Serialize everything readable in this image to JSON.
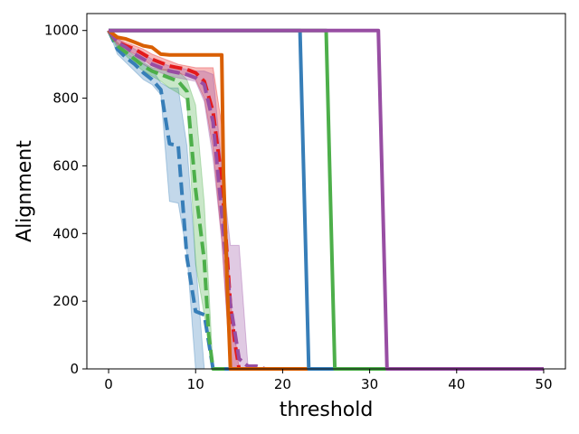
{
  "chart_data": {
    "type": "line",
    "title": "",
    "xlabel": "threshold",
    "ylabel": "Alignment",
    "xlim": [
      -2.5,
      52.5
    ],
    "ylim": [
      0,
      1050
    ],
    "xticks": [
      0,
      10,
      20,
      30,
      40,
      50
    ],
    "yticks": [
      0,
      200,
      400,
      600,
      800,
      1000
    ],
    "grid": false,
    "legend": "none",
    "bands": [
      {
        "color": "#377eb8",
        "x": [
          0,
          1,
          2,
          3,
          4,
          5,
          6,
          7,
          8,
          9,
          10,
          11,
          12,
          15,
          50
        ],
        "lower": [
          1000,
          930,
          905,
          880,
          855,
          840,
          810,
          495,
          490,
          340,
          0,
          0,
          0,
          0,
          0
        ],
        "upper": [
          1000,
          955,
          930,
          915,
          900,
          885,
          845,
          830,
          830,
          660,
          320,
          0,
          0,
          0,
          0
        ]
      },
      {
        "color": "#4daf4a",
        "x": [
          0,
          1,
          2,
          3,
          4,
          5,
          6,
          7,
          8,
          9,
          10,
          11,
          12,
          13,
          50
        ],
        "lower": [
          1000,
          945,
          925,
          900,
          880,
          865,
          850,
          830,
          815,
          795,
          310,
          160,
          0,
          0,
          0
        ],
        "upper": [
          1000,
          965,
          945,
          925,
          905,
          890,
          885,
          885,
          880,
          855,
          780,
          490,
          0,
          0,
          0
        ]
      },
      {
        "color": "#e41a1c",
        "x": [
          0,
          1,
          2,
          3,
          4,
          5,
          6,
          7,
          8,
          9,
          10,
          11,
          12,
          13,
          14,
          15,
          50
        ],
        "lower": [
          1000,
          960,
          945,
          930,
          915,
          895,
          885,
          880,
          875,
          865,
          855,
          800,
          650,
          380,
          0,
          0,
          0
        ],
        "upper": [
          1000,
          975,
          965,
          955,
          945,
          930,
          920,
          910,
          900,
          895,
          890,
          890,
          890,
          720,
          200,
          0,
          0
        ]
      },
      {
        "color": "#984ea3",
        "x": [
          0,
          1,
          2,
          3,
          4,
          5,
          6,
          7,
          8,
          9,
          10,
          11,
          12,
          13,
          14,
          15,
          16,
          17,
          50
        ],
        "lower": [
          1000,
          955,
          935,
          915,
          900,
          885,
          875,
          865,
          860,
          855,
          850,
          790,
          620,
          380,
          0,
          0,
          0,
          0,
          0
        ],
        "upper": [
          1000,
          975,
          960,
          945,
          930,
          915,
          905,
          895,
          890,
          885,
          880,
          880,
          870,
          600,
          365,
          365,
          15,
          0,
          0
        ]
      }
    ],
    "series": [
      {
        "color": "#377eb8",
        "style": "dashed",
        "x": [
          0,
          1,
          2,
          3,
          4,
          5,
          6,
          7,
          8,
          9,
          10,
          11,
          12,
          50
        ],
        "values": [
          1000,
          945,
          920,
          900,
          875,
          855,
          825,
          665,
          660,
          330,
          170,
          160,
          0,
          0
        ]
      },
      {
        "color": "#4daf4a",
        "style": "dashed",
        "x": [
          0,
          1,
          2,
          3,
          4,
          5,
          6,
          7,
          8,
          9,
          10,
          11,
          11.5,
          12,
          50
        ],
        "values": [
          1000,
          955,
          935,
          915,
          895,
          880,
          870,
          860,
          850,
          820,
          530,
          320,
          100,
          0,
          0
        ]
      },
      {
        "color": "#e41a1c",
        "style": "dashed",
        "x": [
          0,
          1,
          2,
          3,
          4,
          5,
          6,
          7,
          8,
          9,
          10,
          11,
          12,
          13,
          13.5,
          14,
          14.5,
          15,
          50
        ],
        "values": [
          1000,
          965,
          955,
          945,
          930,
          915,
          905,
          895,
          890,
          885,
          875,
          850,
          760,
          560,
          380,
          190,
          80,
          0,
          0
        ]
      },
      {
        "color": "#984ea3",
        "style": "dashed",
        "x": [
          0,
          1,
          2,
          3,
          4,
          5,
          6,
          7,
          8,
          9,
          10,
          11,
          12,
          13,
          14,
          15,
          16,
          17,
          18,
          50
        ],
        "values": [
          1000,
          965,
          950,
          930,
          915,
          900,
          890,
          880,
          875,
          870,
          860,
          840,
          730,
          460,
          190,
          30,
          8,
          8,
          0,
          0
        ]
      },
      {
        "color": "#d95f02",
        "style": "solid",
        "x": [
          0,
          1,
          2,
          3,
          4,
          5,
          6,
          7,
          8,
          9,
          10,
          11,
          12,
          13,
          13.2,
          13.7,
          14,
          50
        ],
        "values": [
          1000,
          980,
          975,
          965,
          955,
          950,
          930,
          928,
          928,
          928,
          928,
          928,
          928,
          928,
          580,
          200,
          0,
          0
        ]
      },
      {
        "color": "#377eb8",
        "style": "solid",
        "x": [
          0,
          22,
          23,
          50
        ],
        "values": [
          1000,
          1000,
          0,
          0
        ]
      },
      {
        "color": "#4daf4a",
        "style": "solid",
        "x": [
          0,
          25,
          26,
          50
        ],
        "values": [
          1000,
          1000,
          0,
          0
        ]
      },
      {
        "color": "#984ea3",
        "style": "solid",
        "x": [
          0,
          31,
          32,
          50
        ],
        "values": [
          1000,
          1000,
          0,
          0
        ]
      }
    ]
  }
}
